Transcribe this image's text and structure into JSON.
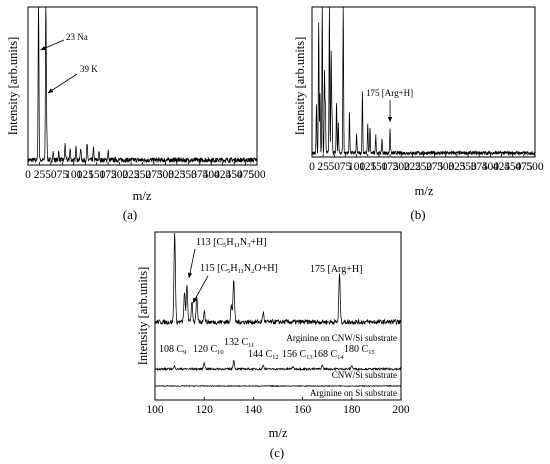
{
  "chart_data": [
    {
      "panel": "(a)",
      "type": "line",
      "xlabel": "m/z",
      "ylabel": "Intensity [arb.units]",
      "xlim": [
        0,
        500
      ],
      "xticks": [
        0,
        25,
        50,
        75,
        100,
        125,
        150,
        175,
        200,
        225,
        250,
        275,
        300,
        325,
        350,
        375,
        400,
        425,
        450,
        475,
        500
      ],
      "ylim": [
        0,
        1
      ],
      "series": [
        {
          "peaks": [
            {
              "x": 23,
              "y": 1.0
            },
            {
              "x": 39,
              "y": 1.0
            },
            {
              "x": 41,
              "y": 0.15
            },
            {
              "x": 55,
              "y": 0.05
            },
            {
              "x": 67,
              "y": 0.05
            },
            {
              "x": 81,
              "y": 0.1
            },
            {
              "x": 92,
              "y": 0.07
            },
            {
              "x": 105,
              "y": 0.09
            },
            {
              "x": 115,
              "y": 0.08
            },
            {
              "x": 129,
              "y": 0.1
            },
            {
              "x": 143,
              "y": 0.07
            },
            {
              "x": 155,
              "y": 0.05
            },
            {
              "x": 175,
              "y": 0.06
            }
          ],
          "noise": 0.015
        }
      ],
      "annotations": [
        {
          "text": "23 Na",
          "x": 23
        },
        {
          "text": "39 K",
          "x": 39
        }
      ]
    },
    {
      "panel": "(b)",
      "type": "line",
      "xlabel": "m/z",
      "ylabel": "Intensity [arb.units]",
      "xlim": [
        0,
        500
      ],
      "xticks": [
        0,
        25,
        50,
        75,
        100,
        125,
        150,
        175,
        200,
        225,
        250,
        275,
        300,
        325,
        350,
        375,
        400,
        425,
        450,
        475,
        500
      ],
      "ylim": [
        0,
        1
      ],
      "series": [
        {
          "peaks": [
            {
              "x": 10,
              "y": 0.34
            },
            {
              "x": 15,
              "y": 0.9
            },
            {
              "x": 18,
              "y": 0.4
            },
            {
              "x": 23,
              "y": 1.0
            },
            {
              "x": 28,
              "y": 0.55
            },
            {
              "x": 30,
              "y": 0.3
            },
            {
              "x": 39,
              "y": 1.0
            },
            {
              "x": 43,
              "y": 0.7
            },
            {
              "x": 45,
              "y": 0.25
            },
            {
              "x": 55,
              "y": 0.35
            },
            {
              "x": 59,
              "y": 0.2
            },
            {
              "x": 70,
              "y": 1.0
            },
            {
              "x": 84,
              "y": 0.28
            },
            {
              "x": 100,
              "y": 0.12
            },
            {
              "x": 113,
              "y": 0.42
            },
            {
              "x": 125,
              "y": 0.2
            },
            {
              "x": 130,
              "y": 0.18
            },
            {
              "x": 143,
              "y": 0.12
            },
            {
              "x": 157,
              "y": 0.1
            },
            {
              "x": 175,
              "y": 0.17
            }
          ],
          "noise": 0.012
        }
      ],
      "annotations": [
        {
          "text": "175 [Arg+H]",
          "x": 175
        }
      ]
    },
    {
      "panel": "(c)",
      "type": "line",
      "xlabel": "m/z",
      "ylabel": "Intensity [arb.units]",
      "xlim": [
        100,
        200
      ],
      "xticks": [
        100,
        120,
        140,
        160,
        180,
        200
      ],
      "series": [
        {
          "name": "Arginine on CNW/Si substrate",
          "peaks": [
            {
              "x": 108,
              "y": 0.95
            },
            {
              "x": 112,
              "y": 0.3
            },
            {
              "x": 113,
              "y": 0.38
            },
            {
              "x": 115,
              "y": 0.22
            },
            {
              "x": 117,
              "y": 0.25
            },
            {
              "x": 120,
              "y": 0.12
            },
            {
              "x": 131,
              "y": 0.18
            },
            {
              "x": 132,
              "y": 0.45
            },
            {
              "x": 144,
              "y": 0.1
            },
            {
              "x": 175,
              "y": 0.5
            }
          ]
        },
        {
          "name": "CNW/Si substrate",
          "peaks": [
            {
              "x": 108,
              "y": 0.05
            },
            {
              "x": 120,
              "y": 0.11
            },
            {
              "x": 132,
              "y": 0.14
            },
            {
              "x": 144,
              "y": 0.06
            },
            {
              "x": 156,
              "y": 0.04
            },
            {
              "x": 168,
              "y": 0.06
            },
            {
              "x": 180,
              "y": 0.06
            }
          ]
        },
        {
          "name": "Arginine on Si substrate",
          "peaks": []
        }
      ],
      "annotations": [
        {
          "x": 113,
          "base": "113 [C",
          "sub": [
            "5",
            "11",
            "3"
          ],
          "parts": [
            "H",
            "N",
            "+H]"
          ]
        },
        {
          "x": 115,
          "base": "115 [C",
          "sub": [
            "5",
            "11",
            "2"
          ],
          "parts": [
            "H",
            "N",
            "O+H]"
          ]
        },
        {
          "text": "175 [Arg+H]",
          "x": 175
        },
        {
          "label": "108 C",
          "sub": "9",
          "x": 108
        },
        {
          "label": "120 C",
          "sub": "10",
          "x": 120
        },
        {
          "label": "132 C",
          "sub": "11",
          "x": 132
        },
        {
          "label": "144 C",
          "sub": "12",
          "x": 144
        },
        {
          "label": "156 C",
          "sub": "13",
          "x": 156
        },
        {
          "label": "168 C",
          "sub": "14",
          "x": 168
        },
        {
          "label": "180 C",
          "sub": "15",
          "x": 180
        }
      ]
    }
  ]
}
